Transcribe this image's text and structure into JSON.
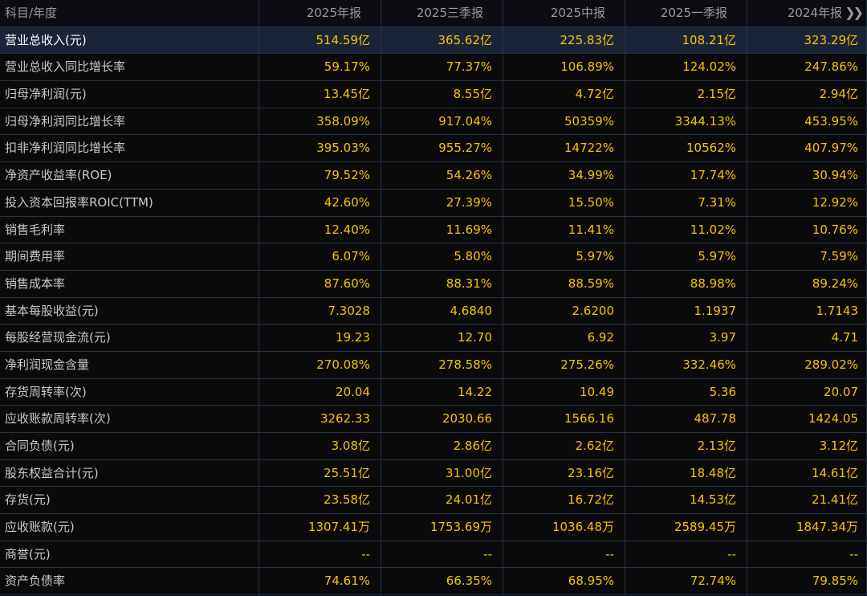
{
  "header": {
    "corner_label": "科目/年度",
    "periods": [
      "2025年报",
      "2025三季报",
      "2025中报",
      "2025一季报",
      "2024年报"
    ],
    "more_icon": "double-chevron-right-icon"
  },
  "colors": {
    "value": "#f5c400",
    "label": "#c8c8c8",
    "header_text": "#9a9a9a",
    "highlight_row_bg": "#1a2436",
    "grid_line": "#23324a",
    "background": "#0a0a0a"
  },
  "rows": [
    {
      "label": "营业总收入(元)",
      "values": [
        "514.59亿",
        "365.62亿",
        "225.83亿",
        "108.21亿",
        "323.29亿"
      ],
      "highlighted": true
    },
    {
      "label": "营业总收入同比增长率",
      "values": [
        "59.17%",
        "77.37%",
        "106.89%",
        "124.02%",
        "247.86%"
      ]
    },
    {
      "label": "归母净利润(元)",
      "values": [
        "13.45亿",
        "8.55亿",
        "4.72亿",
        "2.15亿",
        "2.94亿"
      ]
    },
    {
      "label": "归母净利润同比增长率",
      "values": [
        "358.09%",
        "917.04%",
        "50359%",
        "3344.13%",
        "453.95%"
      ]
    },
    {
      "label": "扣非净利润同比增长率",
      "values": [
        "395.03%",
        "955.27%",
        "14722%",
        "10562%",
        "407.97%"
      ]
    },
    {
      "label": "净资产收益率(ROE)",
      "values": [
        "79.52%",
        "54.26%",
        "34.99%",
        "17.74%",
        "30.94%"
      ]
    },
    {
      "label": "投入资本回报率ROIC(TTM)",
      "values": [
        "42.60%",
        "27.39%",
        "15.50%",
        "7.31%",
        "12.92%"
      ]
    },
    {
      "label": "销售毛利率",
      "values": [
        "12.40%",
        "11.69%",
        "11.41%",
        "11.02%",
        "10.76%"
      ]
    },
    {
      "label": "期间费用率",
      "values": [
        "6.07%",
        "5.80%",
        "5.97%",
        "5.97%",
        "7.59%"
      ]
    },
    {
      "label": "销售成本率",
      "values": [
        "87.60%",
        "88.31%",
        "88.59%",
        "88.98%",
        "89.24%"
      ]
    },
    {
      "label": "基本每股收益(元)",
      "values": [
        "7.3028",
        "4.6840",
        "2.6200",
        "1.1937",
        "1.7143"
      ]
    },
    {
      "label": "每股经营现金流(元)",
      "values": [
        "19.23",
        "12.70",
        "6.92",
        "3.97",
        "4.71"
      ]
    },
    {
      "label": "净利润现金含量",
      "values": [
        "270.08%",
        "278.58%",
        "275.26%",
        "332.46%",
        "289.02%"
      ]
    },
    {
      "label": "存货周转率(次)",
      "values": [
        "20.04",
        "14.22",
        "10.49",
        "5.36",
        "20.07"
      ]
    },
    {
      "label": "应收账款周转率(次)",
      "values": [
        "3262.33",
        "2030.66",
        "1566.16",
        "487.78",
        "1424.05"
      ]
    },
    {
      "label": "合同负债(元)",
      "values": [
        "3.08亿",
        "2.86亿",
        "2.62亿",
        "2.13亿",
        "3.12亿"
      ]
    },
    {
      "label": "股东权益合计(元)",
      "values": [
        "25.51亿",
        "31.00亿",
        "23.16亿",
        "18.48亿",
        "14.61亿"
      ]
    },
    {
      "label": "存货(元)",
      "values": [
        "23.58亿",
        "24.01亿",
        "16.72亿",
        "14.53亿",
        "21.41亿"
      ]
    },
    {
      "label": "应收账款(元)",
      "values": [
        "1307.41万",
        "1753.69万",
        "1036.48万",
        "2589.45万",
        "1847.34万"
      ]
    },
    {
      "label": "商誉(元)",
      "values": [
        "--",
        "--",
        "--",
        "--",
        "--"
      ]
    },
    {
      "label": "资产负债率",
      "values": [
        "74.61%",
        "66.35%",
        "68.95%",
        "72.74%",
        "79.85%"
      ]
    }
  ]
}
